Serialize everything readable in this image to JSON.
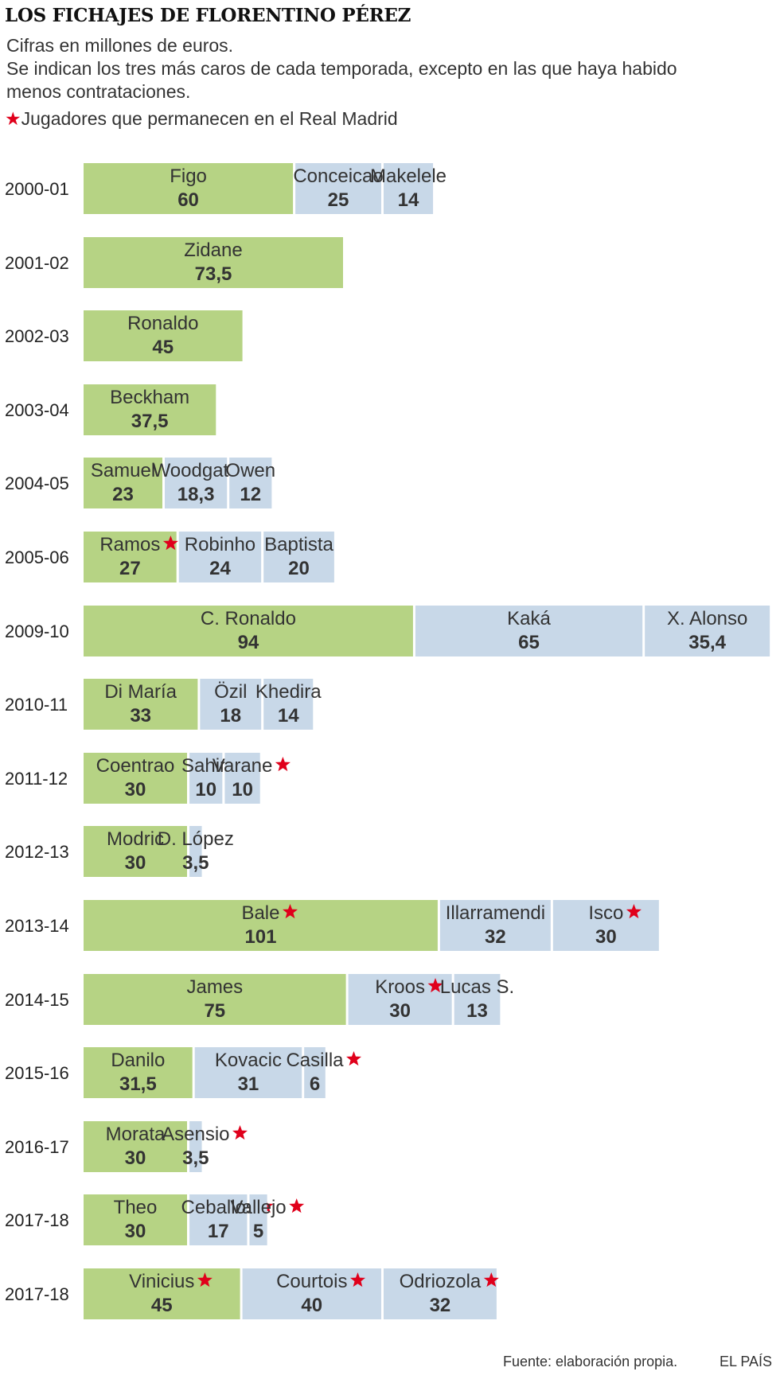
{
  "title": "LOS FICHAJES DE FLORENTINO PÉREZ",
  "subtitle_lines": [
    "Cifras en millones de euros.",
    "Se indican los tres más caros de cada temporada, excepto en las que haya habido",
    "menos contrataciones."
  ],
  "legend": {
    "symbol": "★",
    "text": "Jugadores que permanecen en el Real Madrid"
  },
  "colors": {
    "first": "#b6d384",
    "other": "#c8d8e8",
    "star": "#e0001b"
  },
  "chart_data": {
    "type": "bar",
    "orientation": "horizontal-stacked",
    "unit": "millones de euros",
    "seasons": [
      {
        "season": "2000-01",
        "players": [
          {
            "name": "Figo",
            "value": 60,
            "value_label": "60",
            "star": false
          },
          {
            "name": "Conceicao",
            "value": 25,
            "value_label": "25",
            "star": false
          },
          {
            "name": "Makelele",
            "value": 14,
            "value_label": "14",
            "star": false
          }
        ]
      },
      {
        "season": "2001-02",
        "players": [
          {
            "name": "Zidane",
            "value": 73.5,
            "value_label": "73,5",
            "star": false
          }
        ]
      },
      {
        "season": "2002-03",
        "players": [
          {
            "name": "Ronaldo",
            "value": 45,
            "value_label": "45",
            "star": false
          }
        ]
      },
      {
        "season": "2003-04",
        "players": [
          {
            "name": "Beckham",
            "value": 37.5,
            "value_label": "37,5",
            "star": false
          }
        ]
      },
      {
        "season": "2004-05",
        "players": [
          {
            "name": "Samuel",
            "value": 23,
            "value_label": "23",
            "star": false
          },
          {
            "name": "Woodgate",
            "value": 18.3,
            "value_label": "18,3",
            "star": false
          },
          {
            "name": "Owen",
            "value": 12,
            "value_label": "12",
            "star": false
          }
        ]
      },
      {
        "season": "2005-06",
        "players": [
          {
            "name": "Ramos",
            "value": 27,
            "value_label": "27",
            "star": true
          },
          {
            "name": "Robinho",
            "value": 24,
            "value_label": "24",
            "star": false
          },
          {
            "name": "Baptista",
            "value": 20,
            "value_label": "20",
            "star": false
          }
        ]
      },
      {
        "season": "2009-10",
        "players": [
          {
            "name": "C. Ronaldo",
            "value": 94,
            "value_label": "94",
            "star": false
          },
          {
            "name": "Kaká",
            "value": 65,
            "value_label": "65",
            "star": false
          },
          {
            "name": "X. Alonso",
            "value": 35.4,
            "value_label": "35,4",
            "star": false
          }
        ]
      },
      {
        "season": "2010-11",
        "players": [
          {
            "name": "Di María",
            "value": 33,
            "value_label": "33",
            "star": false
          },
          {
            "name": "Özil",
            "value": 18,
            "value_label": "18",
            "star": false
          },
          {
            "name": "Khedira",
            "value": 14,
            "value_label": "14",
            "star": false
          }
        ]
      },
      {
        "season": "2011-12",
        "players": [
          {
            "name": "Coentrao",
            "value": 30,
            "value_label": "30",
            "star": false
          },
          {
            "name": "Sahin",
            "value": 10,
            "value_label": "10",
            "star": false
          },
          {
            "name": "Varane",
            "value": 10,
            "value_label": "10",
            "star": true
          }
        ]
      },
      {
        "season": "2012-13",
        "players": [
          {
            "name": "Modric",
            "value": 30,
            "value_label": "30",
            "star": false
          },
          {
            "name": "D. López",
            "value": 3.5,
            "value_label": "3,5",
            "star": false
          }
        ]
      },
      {
        "season": "2013-14",
        "players": [
          {
            "name": "Bale",
            "value": 101,
            "value_label": "101",
            "star": true
          },
          {
            "name": "Illarramendi",
            "value": 32,
            "value_label": "32",
            "star": false
          },
          {
            "name": "Isco",
            "value": 30,
            "value_label": "30",
            "star": true
          }
        ]
      },
      {
        "season": "2014-15",
        "players": [
          {
            "name": "James",
            "value": 75,
            "value_label": "75",
            "star": false
          },
          {
            "name": "Kroos",
            "value": 30,
            "value_label": "30",
            "star": true
          },
          {
            "name": "Lucas S.",
            "value": 13,
            "value_label": "13",
            "star": false
          }
        ]
      },
      {
        "season": "2015-16",
        "players": [
          {
            "name": "Danilo",
            "value": 31.5,
            "value_label": "31,5",
            "star": false
          },
          {
            "name": "Kovacic",
            "value": 31,
            "value_label": "31",
            "star": false
          },
          {
            "name": "Casilla",
            "value": 6,
            "value_label": "6",
            "star": true
          }
        ]
      },
      {
        "season": "2016-17",
        "players": [
          {
            "name": "Morata",
            "value": 30,
            "value_label": "30",
            "star": false
          },
          {
            "name": "Asensio",
            "value": 3.5,
            "value_label": "3,5",
            "star": true
          }
        ]
      },
      {
        "season": "2017-18",
        "players": [
          {
            "name": "Theo",
            "value": 30,
            "value_label": "30",
            "star": false
          },
          {
            "name": "Ceballos",
            "value": 17,
            "value_label": "17",
            "star": true
          },
          {
            "name": "Vallejo",
            "value": 5,
            "value_label": "5",
            "star": true
          }
        ]
      },
      {
        "season": "2017-18",
        "players": [
          {
            "name": "Vinicius",
            "value": 45,
            "value_label": "45",
            "star": true
          },
          {
            "name": "Courtois",
            "value": 40,
            "value_label": "40",
            "star": true
          },
          {
            "name": "Odriozola",
            "value": 32,
            "value_label": "32",
            "star": true
          }
        ]
      }
    ]
  },
  "footer": {
    "source": "Fuente: elaboración propia.",
    "brand": "EL PAÍS"
  }
}
